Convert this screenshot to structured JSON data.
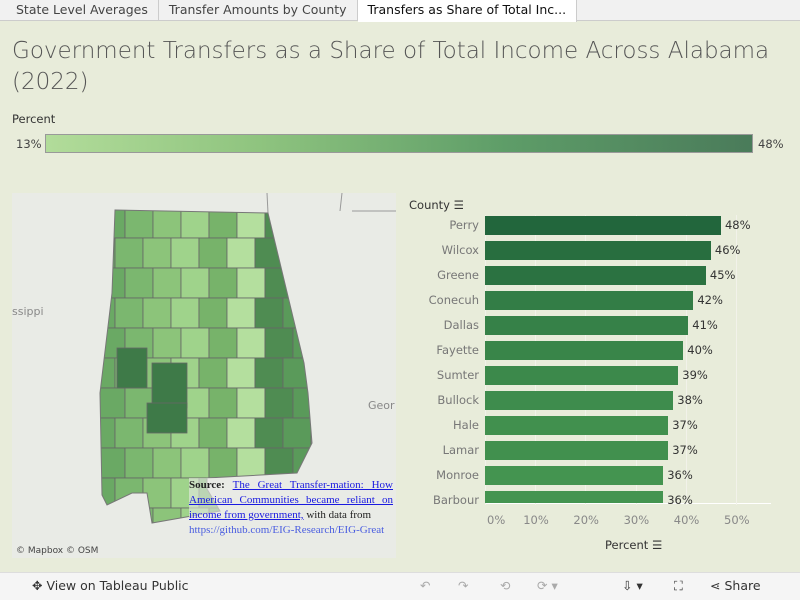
{
  "tabs": [
    "State Level Averages",
    "Transfer Amounts by County",
    "Transfers as Share of Total Inc..."
  ],
  "active_tab": 2,
  "title": "Government Transfers as a Share of Total Income Across Alabama (2022)",
  "legend": {
    "label": "Percent",
    "min": "13%",
    "max": "48%",
    "colors": [
      "#b2dc9a",
      "#4a7b5a"
    ]
  },
  "map": {
    "labels": {
      "west": "ssippi",
      "east": "Geor"
    },
    "attribution": "© Mapbox  © OSM",
    "source": {
      "prefix": "Source:",
      "link": "The Great Transfer-mation: How American Communities became reliant on income from government,",
      "suffix": " with data from",
      "url": "https://github.com/EIG-Research/EIG-Great"
    }
  },
  "chart_data": {
    "type": "bar",
    "orientation": "horizontal",
    "ylabel": "County",
    "xlabel": "Percent",
    "categories": [
      "Perry",
      "Wilcox",
      "Greene",
      "Conecuh",
      "Dallas",
      "Fayette",
      "Sumter",
      "Bullock",
      "Hale",
      "Lamar",
      "Monroe",
      "Barbour"
    ],
    "values": [
      48,
      46,
      45,
      42,
      41,
      40,
      39,
      38,
      37,
      37,
      36,
      36
    ],
    "value_labels": [
      "48%",
      "46%",
      "45%",
      "42%",
      "41%",
      "40%",
      "39%",
      "38%",
      "37%",
      "37%",
      "36%",
      "36%"
    ],
    "xticks": [
      "0%",
      "10%",
      "20%",
      "30%",
      "40%",
      "50%"
    ],
    "xlim": [
      0,
      57
    ]
  },
  "footer": {
    "view": "View on Tableau Public",
    "share": "Share"
  }
}
